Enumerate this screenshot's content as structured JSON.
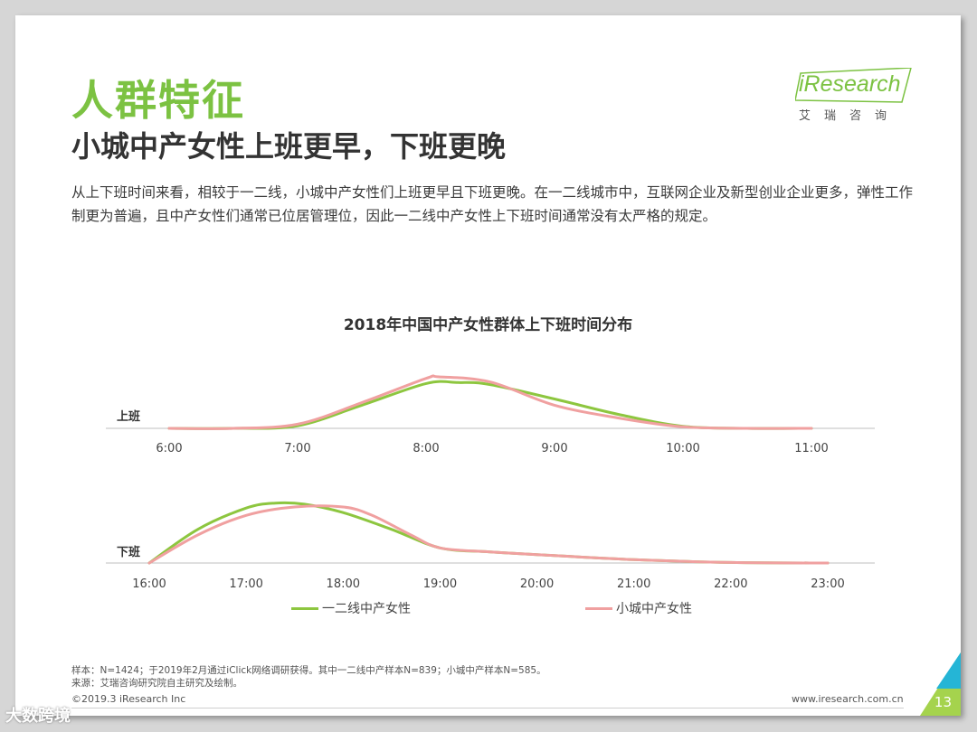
{
  "title": "人群特征",
  "subtitle": "小城中产女性上班更早，下班更晚",
  "description": "从上下班时间来看，相较于一二线，小城中产女性们上班更早且下班更晚。在一二线城市中，互联网企业及新型创业企业更多，弹性工作制更为普遍，且中产女性们通常已位居管理位，因此一二线中产女性上下班时间通常没有太严格的规定。",
  "logo": {
    "text": "iResearch",
    "sub": "艾瑞咨询"
  },
  "chart_data": {
    "type": "line",
    "title": "2018年中国中产女性群体上下班时间分布",
    "legend": {
      "placement": "bottom"
    },
    "series_meta": [
      {
        "name": "一二线中产女性",
        "color": "#8dc63f"
      },
      {
        "name": "小城中产女性",
        "color": "#f0a0a0"
      }
    ],
    "panels": [
      {
        "label": "上班",
        "x_ticks": [
          "6:00",
          "7:00",
          "8:00",
          "9:00",
          "10:00",
          "11:00"
        ],
        "x_range": [
          6,
          11
        ],
        "y_range": [
          0,
          1
        ],
        "series": [
          {
            "name": "一二线中产女性",
            "x": [
              6,
              6.5,
              7,
              7.5,
              8,
              8.25,
              8.5,
              9,
              9.5,
              10,
              10.5,
              11
            ],
            "y": [
              0.0,
              0.0,
              0.05,
              0.45,
              0.87,
              0.89,
              0.85,
              0.57,
              0.27,
              0.04,
              0.0,
              0.0
            ]
          },
          {
            "name": "小城中产女性",
            "x": [
              6,
              6.5,
              7,
              7.5,
              8,
              8.1,
              8.5,
              9,
              9.5,
              10,
              10.5,
              11
            ],
            "y": [
              0.0,
              0.0,
              0.08,
              0.5,
              0.97,
              1.0,
              0.9,
              0.45,
              0.2,
              0.03,
              0.0,
              0.0
            ]
          }
        ]
      },
      {
        "label": "下班",
        "x_ticks": [
          "16:00",
          "17:00",
          "18:00",
          "19:00",
          "20:00",
          "21:00",
          "22:00",
          "23:00"
        ],
        "x_range": [
          16,
          23
        ],
        "y_range": [
          0,
          1
        ],
        "series": [
          {
            "name": "一二线中产女性",
            "x": [
              16,
              16.5,
              17,
              17.3,
              17.6,
              18,
              18.5,
              19,
              19.5,
              20,
              21,
              22,
              23
            ],
            "y": [
              0.0,
              0.6,
              0.98,
              1.07,
              1.05,
              0.9,
              0.6,
              0.27,
              0.2,
              0.15,
              0.06,
              0.01,
              0.0
            ]
          },
          {
            "name": "小城中产女性",
            "x": [
              16,
              16.5,
              17,
              17.5,
              18,
              18.3,
              18.7,
              19,
              19.5,
              20,
              21,
              22,
              23
            ],
            "y": [
              0.0,
              0.5,
              0.85,
              1.0,
              1.0,
              0.85,
              0.5,
              0.27,
              0.2,
              0.15,
              0.06,
              0.01,
              0.0
            ]
          }
        ]
      }
    ]
  },
  "notes": [
    "样本：N=1424；于2019年2月通过iClick网络调研获得。其中一二线中产样本N=839；小城中产样本N=585。",
    "来源：艾瑞咨询研究院自主研究及绘制。"
  ],
  "footer": {
    "copyright": "©2019.3 iResearch Inc",
    "website": "www.iresearch.com.cn",
    "page": "13"
  },
  "watermark": "大数跨境",
  "colors": {
    "accent": "#7cc242",
    "teal": "#25b5d6",
    "lime": "#a5d34d"
  }
}
